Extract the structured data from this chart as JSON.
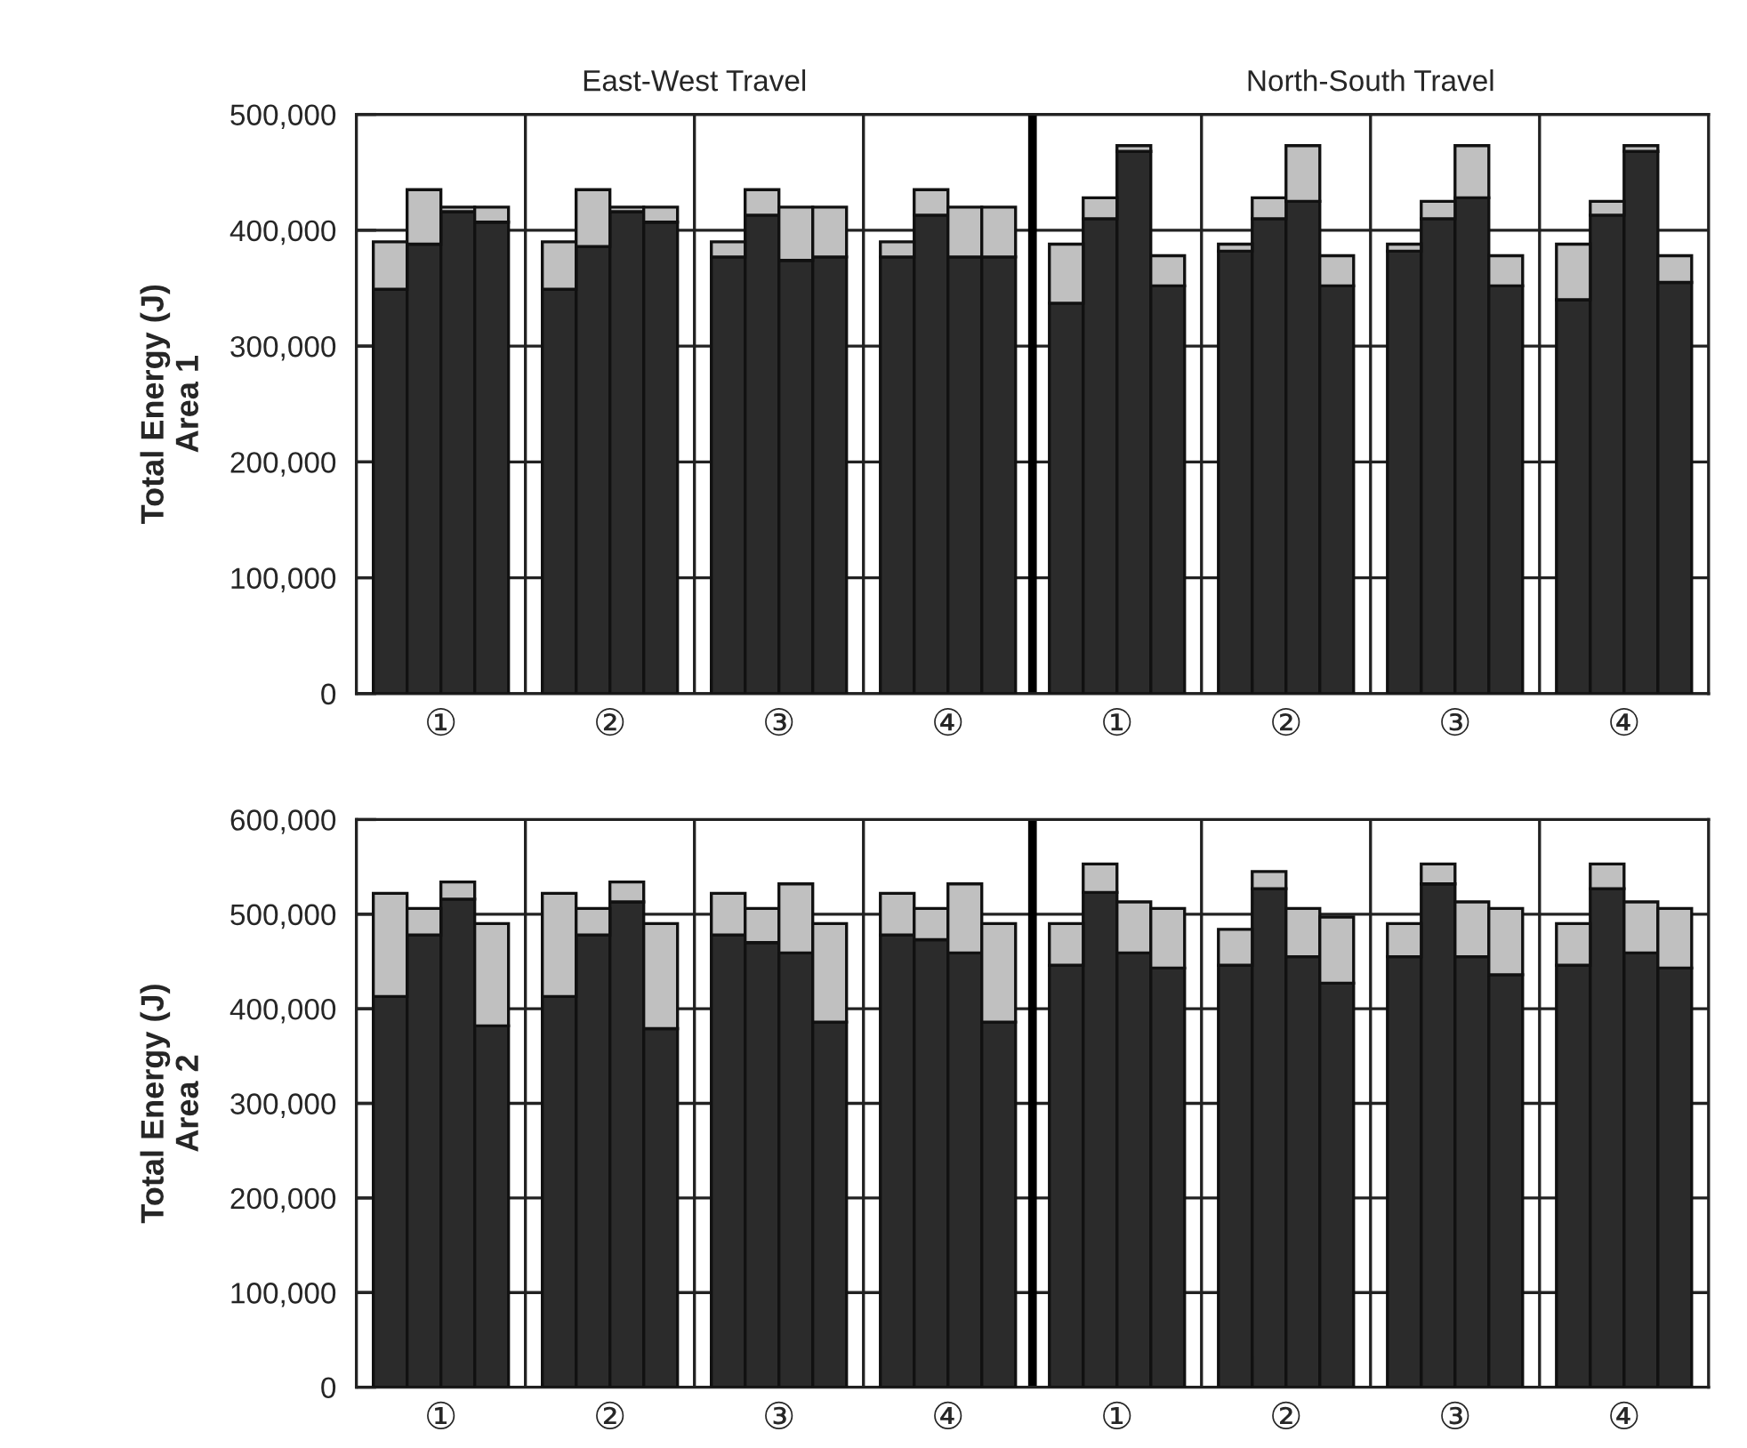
{
  "chart_data": [
    {
      "type": "bar",
      "stacked": true,
      "ylabel": "Total Energy (J)\nArea 1",
      "annotations": [
        "East-West Travel",
        "North-South Travel"
      ],
      "categories": [
        null,
        "①",
        null,
        null,
        null,
        null,
        "②",
        null,
        null,
        null,
        null,
        "③",
        null,
        null,
        null,
        null,
        "④",
        null,
        null,
        null,
        null,
        "①",
        null,
        null,
        null,
        null,
        "②",
        null,
        null,
        null,
        null,
        "③",
        null,
        null,
        null,
        null,
        "④",
        null,
        null
      ],
      "ylim": [
        0,
        500000
      ],
      "yticks": [
        0,
        {
          "value": 100000,
          "label": "100,000"
        },
        {
          "value": 200000,
          "label": "200,000"
        },
        {
          "value": 300000,
          "label": "300,000"
        },
        {
          "value": 400000,
          "label": "400,000"
        },
        {
          "value": 500000,
          "label": "500,000"
        }
      ],
      "grid": "y",
      "series": [
        {
          "color": "#2b2b2b",
          "values": [
            349000,
            388000,
            416000,
            407000,
            null,
            349000,
            386000,
            416000,
            407000,
            null,
            377000,
            413000,
            374000,
            377000,
            null,
            377000,
            413000,
            377000,
            377000,
            null,
            337000,
            410000,
            468000,
            352000,
            null,
            382000,
            410000,
            425000,
            352000,
            null,
            382000,
            410000,
            428000,
            352000,
            null,
            340000,
            413000,
            468000,
            355000
          ]
        },
        {
          "color": "#c0c0c0",
          "values": [
            41000,
            47000,
            4000,
            13000,
            null,
            41000,
            49000,
            4000,
            13000,
            null,
            13000,
            22000,
            46000,
            43000,
            null,
            13000,
            22000,
            43000,
            43000,
            null,
            51000,
            18000,
            5000,
            26000,
            null,
            6000,
            18000,
            48000,
            26000,
            null,
            6000,
            15000,
            45000,
            26000,
            null,
            48000,
            12000,
            5000,
            23000
          ]
        }
      ]
    },
    {
      "type": "bar",
      "stacked": true,
      "ylabel": "Total Energy (J)\nArea 2",
      "categories": [
        null,
        "①",
        null,
        null,
        null,
        null,
        "②",
        null,
        null,
        null,
        null,
        "③",
        null,
        null,
        null,
        null,
        "④",
        null,
        null,
        null,
        null,
        "①",
        null,
        null,
        null,
        null,
        "②",
        null,
        null,
        null,
        null,
        "③",
        null,
        null,
        null,
        null,
        "④",
        null,
        null
      ],
      "ylim": [
        0,
        600000
      ],
      "yticks": [
        0,
        {
          "value": 100000,
          "label": "100,000"
        },
        {
          "value": 200000,
          "label": "200,000"
        },
        {
          "value": 300000,
          "label": "300,000"
        },
        {
          "value": 400000,
          "label": "400,000"
        },
        {
          "value": 500000,
          "label": "500,000"
        },
        {
          "value": 600000,
          "label": "600,000"
        }
      ],
      "grid": "y",
      "series": [
        {
          "color": "#2b2b2b",
          "values": [
            413000,
            478000,
            516000,
            382000,
            null,
            413000,
            478000,
            513000,
            379000,
            null,
            478000,
            470000,
            459000,
            386000,
            null,
            478000,
            473000,
            459000,
            386000,
            null,
            446000,
            523000,
            459000,
            443000,
            null,
            446000,
            527000,
            455000,
            427000,
            null,
            455000,
            532000,
            455000,
            436000,
            null,
            446000,
            527000,
            459000,
            443000
          ]
        },
        {
          "color": "#c0c0c0",
          "values": [
            109000,
            28000,
            18000,
            108000,
            null,
            109000,
            28000,
            21000,
            111000,
            null,
            44000,
            36000,
            73000,
            104000,
            null,
            44000,
            33000,
            73000,
            104000,
            null,
            44000,
            30000,
            54000,
            63000,
            null,
            38000,
            18000,
            51000,
            70000,
            null,
            35000,
            21000,
            58000,
            70000,
            null,
            44000,
            26000,
            54000,
            63000
          ]
        }
      ]
    }
  ]
}
